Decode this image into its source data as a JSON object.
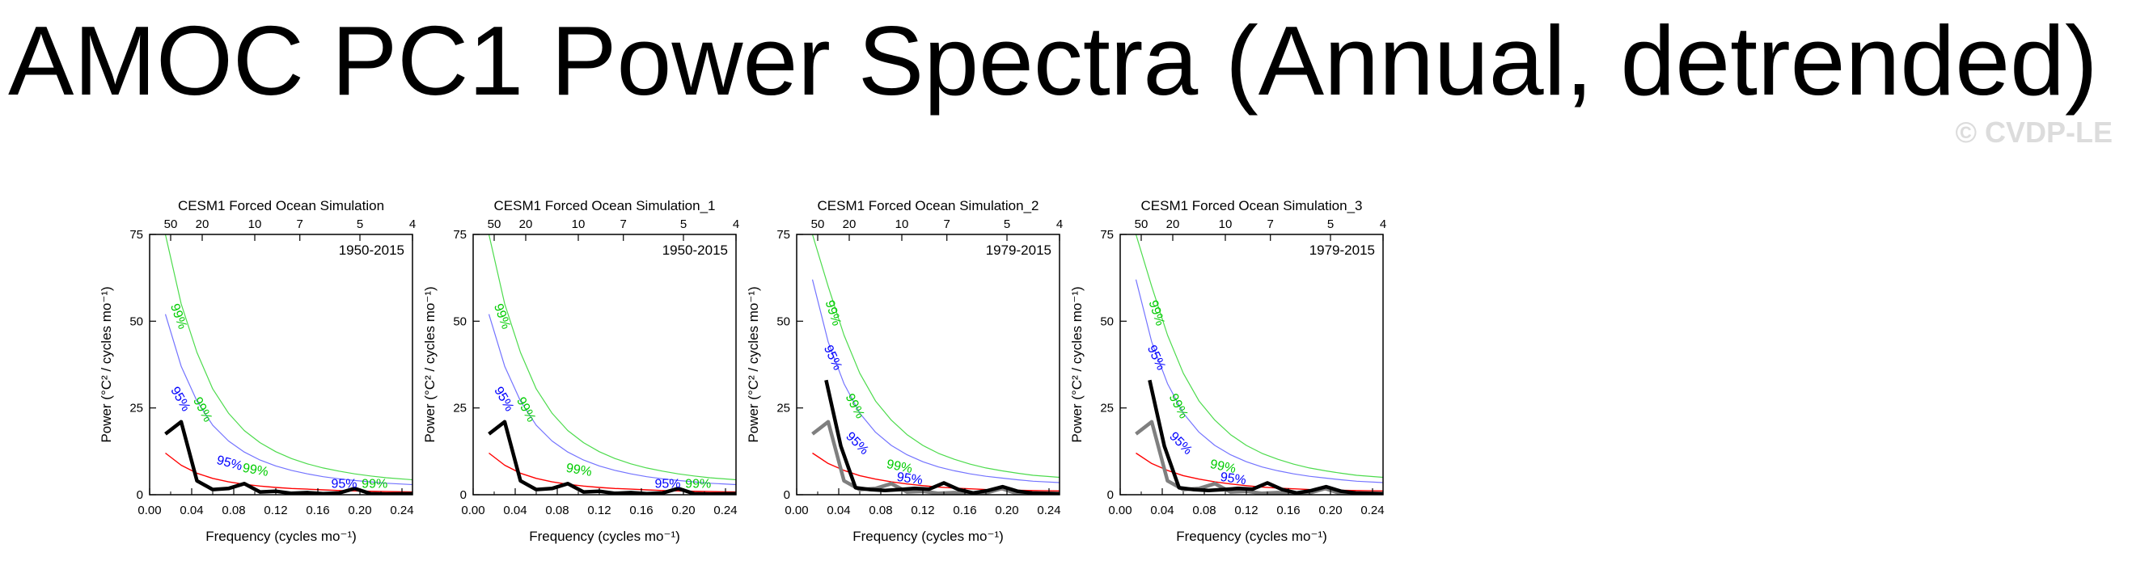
{
  "title": "AMOC PC1 Power Spectra (Annual, detrended)",
  "watermark": "© CVDP-LE",
  "colors": {
    "observed": "#000000",
    "reference": "#7f7f7f",
    "red_noise": "#ff0000",
    "ci95": "#0000ff",
    "ci99": "#00cc00"
  },
  "chart_data": [
    {
      "type": "line",
      "title": "CESM1 Forced Ocean Simulation",
      "period_label": "1950-2015",
      "xlabel": "Frequency (cycles mo⁻¹)",
      "ylabel": "Power (°C² / cycles mo⁻¹)",
      "xlim": [
        0,
        0.25
      ],
      "ylim": [
        0,
        75
      ],
      "xticks": [
        "0.00",
        "0.04",
        "0.08",
        "0.12",
        "0.16",
        "0.20",
        "0.24"
      ],
      "yticks": [
        "0",
        "25",
        "50",
        "75"
      ],
      "top_axis_label": "",
      "top_ticks": [
        "50",
        "20",
        "10",
        "7",
        "5",
        "4"
      ],
      "x": [
        0.015,
        0.03,
        0.045,
        0.06,
        0.075,
        0.09,
        0.105,
        0.12,
        0.135,
        0.15,
        0.165,
        0.18,
        0.195,
        0.21,
        0.225,
        0.25
      ],
      "series": [
        {
          "name": "",
          "role": "observed",
          "values": [
            17.5,
            21,
            4,
            1.5,
            1.8,
            3.2,
            0.8,
            1,
            0.4,
            0.6,
            0.3,
            0.5,
            1.8,
            0.3,
            0.2,
            0.3
          ]
        },
        {
          "name": "",
          "role": "red_noise",
          "values": [
            12,
            8.5,
            6.2,
            4.7,
            3.7,
            3,
            2.5,
            2.1,
            1.8,
            1.6,
            1.4,
            1.2,
            1.1,
            1,
            0.9,
            0.8
          ]
        },
        {
          "name": "",
          "role": "ci95",
          "values": [
            52,
            37,
            27,
            20,
            15.5,
            12.3,
            10,
            8.3,
            7,
            6,
            5.2,
            4.6,
            4.1,
            3.7,
            3.3,
            2.9
          ]
        },
        {
          "name": "",
          "role": "ci99",
          "values": [
            75,
            55,
            41,
            30.5,
            23.5,
            18.5,
            15,
            12.4,
            10.4,
            8.9,
            7.7,
            6.8,
            6,
            5.4,
            4.9,
            4.3
          ]
        }
      ],
      "labels": [
        {
          "text": "99%",
          "x": 0.024,
          "y": 51,
          "role": "ci99",
          "angle": 70
        },
        {
          "text": "95%",
          "x": 0.026,
          "y": 27,
          "role": "ci95",
          "angle": 60
        },
        {
          "text": "99%",
          "x": 0.047,
          "y": 24,
          "role": "ci99",
          "angle": 62
        },
        {
          "text": "95%",
          "x": 0.075,
          "y": 8,
          "role": "ci95",
          "angle": 15
        },
        {
          "text": "99%",
          "x": 0.1,
          "y": 6,
          "role": "ci99",
          "angle": 10
        },
        {
          "text": "95%",
          "x": 0.185,
          "y": 2,
          "role": "ci95",
          "angle": 0
        },
        {
          "text": "99%",
          "x": 0.214,
          "y": 2,
          "role": "ci99",
          "angle": 0
        }
      ]
    },
    {
      "type": "line",
      "title": "CESM1 Forced Ocean Simulation_1",
      "period_label": "1950-2015",
      "xlabel": "Frequency (cycles mo⁻¹)",
      "ylabel": "Power (°C² / cycles mo⁻¹)",
      "xlim": [
        0,
        0.25
      ],
      "ylim": [
        0,
        75
      ],
      "xticks": [
        "0.00",
        "0.04",
        "0.08",
        "0.12",
        "0.16",
        "0.20",
        "0.24"
      ],
      "yticks": [
        "0",
        "25",
        "50",
        "75"
      ],
      "top_ticks": [
        "50",
        "20",
        "10",
        "7",
        "5",
        "4"
      ],
      "x": [
        0.015,
        0.03,
        0.045,
        0.06,
        0.075,
        0.09,
        0.105,
        0.12,
        0.135,
        0.15,
        0.165,
        0.18,
        0.195,
        0.21,
        0.225,
        0.25
      ],
      "series": [
        {
          "name": "",
          "role": "observed",
          "values": [
            17.5,
            21,
            4,
            1.5,
            1.8,
            3.2,
            0.8,
            1,
            0.4,
            0.6,
            0.3,
            0.5,
            1.8,
            0.3,
            0.2,
            0.3
          ]
        },
        {
          "name": "",
          "role": "red_noise",
          "values": [
            12,
            8.5,
            6.2,
            4.7,
            3.7,
            3,
            2.5,
            2.1,
            1.8,
            1.6,
            1.4,
            1.2,
            1.1,
            1,
            0.9,
            0.8
          ]
        },
        {
          "name": "",
          "role": "ci95",
          "values": [
            52,
            37,
            27,
            20,
            15.5,
            12.3,
            10,
            8.3,
            7,
            6,
            5.2,
            4.6,
            4.1,
            3.7,
            3.3,
            2.9
          ]
        },
        {
          "name": "",
          "role": "ci99",
          "values": [
            75,
            55,
            41,
            30.5,
            23.5,
            18.5,
            15,
            12.4,
            10.4,
            8.9,
            7.7,
            6.8,
            6,
            5.4,
            4.9,
            4.3
          ]
        }
      ],
      "labels": [
        {
          "text": "99%",
          "x": 0.024,
          "y": 51,
          "role": "ci99",
          "angle": 70
        },
        {
          "text": "95%",
          "x": 0.026,
          "y": 27,
          "role": "ci95",
          "angle": 60
        },
        {
          "text": "99%",
          "x": 0.047,
          "y": 24,
          "role": "ci99",
          "angle": 62
        },
        {
          "text": "99%",
          "x": 0.1,
          "y": 6,
          "role": "ci99",
          "angle": 10
        },
        {
          "text": "95%",
          "x": 0.185,
          "y": 2,
          "role": "ci95",
          "angle": 0
        },
        {
          "text": "99%",
          "x": 0.214,
          "y": 2,
          "role": "ci99",
          "angle": 0
        }
      ]
    },
    {
      "type": "line",
      "title": "CESM1 Forced Ocean Simulation_2",
      "period_label": "1979-2015",
      "xlabel": "Frequency (cycles mo⁻¹)",
      "ylabel": "Power (°C² / cycles mo⁻¹)",
      "xlim": [
        0,
        0.25
      ],
      "ylim": [
        0,
        75
      ],
      "xticks": [
        "0.00",
        "0.04",
        "0.08",
        "0.12",
        "0.16",
        "0.20",
        "0.24"
      ],
      "yticks": [
        "0",
        "25",
        "50",
        "75"
      ],
      "top_ticks": [
        "50",
        "20",
        "10",
        "7",
        "5",
        "4"
      ],
      "x": [
        0.015,
        0.03,
        0.045,
        0.06,
        0.075,
        0.09,
        0.105,
        0.12,
        0.135,
        0.15,
        0.165,
        0.18,
        0.195,
        0.21,
        0.225,
        0.25
      ],
      "series": [
        {
          "name": "",
          "role": "reference",
          "values": [
            17.5,
            21,
            4,
            1.5,
            1.8,
            3.2,
            0.8,
            1,
            0.4,
            0.6,
            0.3,
            0.5,
            1.8,
            0.3,
            0.2,
            0.3
          ]
        },
        {
          "name": "",
          "role": "observed",
          "x": [
            0.028,
            0.042,
            0.056,
            0.07,
            0.084,
            0.098,
            0.112,
            0.126,
            0.14,
            0.154,
            0.168,
            0.182,
            0.196,
            0.21,
            0.224,
            0.25
          ],
          "values": [
            33,
            14,
            2,
            1.5,
            1.2,
            1.5,
            1.8,
            1.6,
            3.4,
            1.5,
            0.5,
            1.2,
            2.3,
            1,
            0.5,
            0.3
          ]
        },
        {
          "name": "",
          "role": "red_noise",
          "values": [
            12,
            9,
            7,
            5.5,
            4.5,
            3.7,
            3.1,
            2.6,
            2.2,
            1.9,
            1.7,
            1.5,
            1.4,
            1.3,
            1.2,
            1.1
          ]
        },
        {
          "name": "",
          "role": "ci95",
          "values": [
            62,
            44,
            32,
            23.5,
            18,
            14.2,
            11.5,
            9.5,
            8,
            6.9,
            6,
            5.3,
            4.8,
            4.3,
            3.9,
            3.5
          ]
        },
        {
          "name": "",
          "role": "ci99",
          "values": [
            75,
            60,
            46,
            35,
            27,
            21.5,
            17.3,
            14.2,
            11.9,
            10.2,
            8.8,
            7.7,
            6.9,
            6.2,
            5.6,
            5
          ]
        }
      ],
      "labels": [
        {
          "text": "99%",
          "x": 0.031,
          "y": 52,
          "role": "ci99",
          "angle": 72
        },
        {
          "text": "95%",
          "x": 0.031,
          "y": 39,
          "role": "ci95",
          "angle": 65
        },
        {
          "text": "99%",
          "x": 0.052,
          "y": 25,
          "role": "ci99",
          "angle": 62
        },
        {
          "text": "95%",
          "x": 0.055,
          "y": 14,
          "role": "ci95",
          "angle": 45
        },
        {
          "text": "99%",
          "x": 0.097,
          "y": 7,
          "role": "ci99",
          "angle": 12
        },
        {
          "text": "95%",
          "x": 0.107,
          "y": 3.5,
          "role": "ci95",
          "angle": 8
        }
      ]
    },
    {
      "type": "line",
      "title": "CESM1 Forced Ocean Simulation_3",
      "period_label": "1979-2015",
      "xlabel": "Frequency (cycles mo⁻¹)",
      "ylabel": "Power (°C² / cycles mo⁻¹)",
      "xlim": [
        0,
        0.25
      ],
      "ylim": [
        0,
        75
      ],
      "xticks": [
        "0.00",
        "0.04",
        "0.08",
        "0.12",
        "0.16",
        "0.20",
        "0.24"
      ],
      "yticks": [
        "0",
        "25",
        "50",
        "75"
      ],
      "top_ticks": [
        "50",
        "20",
        "10",
        "7",
        "5",
        "4"
      ],
      "x": [
        0.015,
        0.03,
        0.045,
        0.06,
        0.075,
        0.09,
        0.105,
        0.12,
        0.135,
        0.15,
        0.165,
        0.18,
        0.195,
        0.21,
        0.225,
        0.25
      ],
      "series": [
        {
          "name": "",
          "role": "reference",
          "values": [
            17.5,
            21,
            4,
            1.5,
            1.8,
            3.2,
            0.8,
            1,
            0.4,
            0.6,
            0.3,
            0.5,
            1.8,
            0.3,
            0.2,
            0.3
          ]
        },
        {
          "name": "",
          "role": "observed",
          "x": [
            0.028,
            0.042,
            0.056,
            0.07,
            0.084,
            0.098,
            0.112,
            0.126,
            0.14,
            0.154,
            0.168,
            0.182,
            0.196,
            0.21,
            0.224,
            0.25
          ],
          "values": [
            33,
            14,
            2,
            1.5,
            1.2,
            1.5,
            1.8,
            1.6,
            3.4,
            1.5,
            0.5,
            1.2,
            2.3,
            1,
            0.5,
            0.3
          ]
        },
        {
          "name": "",
          "role": "red_noise",
          "values": [
            12,
            9,
            7,
            5.5,
            4.5,
            3.7,
            3.1,
            2.6,
            2.2,
            1.9,
            1.7,
            1.5,
            1.4,
            1.3,
            1.2,
            1.1
          ]
        },
        {
          "name": "",
          "role": "ci95",
          "values": [
            62,
            44,
            32,
            23.5,
            18,
            14.2,
            11.5,
            9.5,
            8,
            6.9,
            6,
            5.3,
            4.8,
            4.3,
            3.9,
            3.5
          ]
        },
        {
          "name": "",
          "role": "ci99",
          "values": [
            75,
            60,
            46,
            35,
            27,
            21.5,
            17.3,
            14.2,
            11.9,
            10.2,
            8.8,
            7.7,
            6.9,
            6.2,
            5.6,
            5
          ]
        }
      ],
      "labels": [
        {
          "text": "99%",
          "x": 0.031,
          "y": 52,
          "role": "ci99",
          "angle": 72
        },
        {
          "text": "95%",
          "x": 0.031,
          "y": 39,
          "role": "ci95",
          "angle": 65
        },
        {
          "text": "99%",
          "x": 0.052,
          "y": 25,
          "role": "ci99",
          "angle": 62
        },
        {
          "text": "95%",
          "x": 0.055,
          "y": 14,
          "role": "ci95",
          "angle": 45
        },
        {
          "text": "99%",
          "x": 0.097,
          "y": 7,
          "role": "ci99",
          "angle": 12
        },
        {
          "text": "95%",
          "x": 0.107,
          "y": 3.5,
          "role": "ci95",
          "angle": 8
        }
      ]
    }
  ]
}
